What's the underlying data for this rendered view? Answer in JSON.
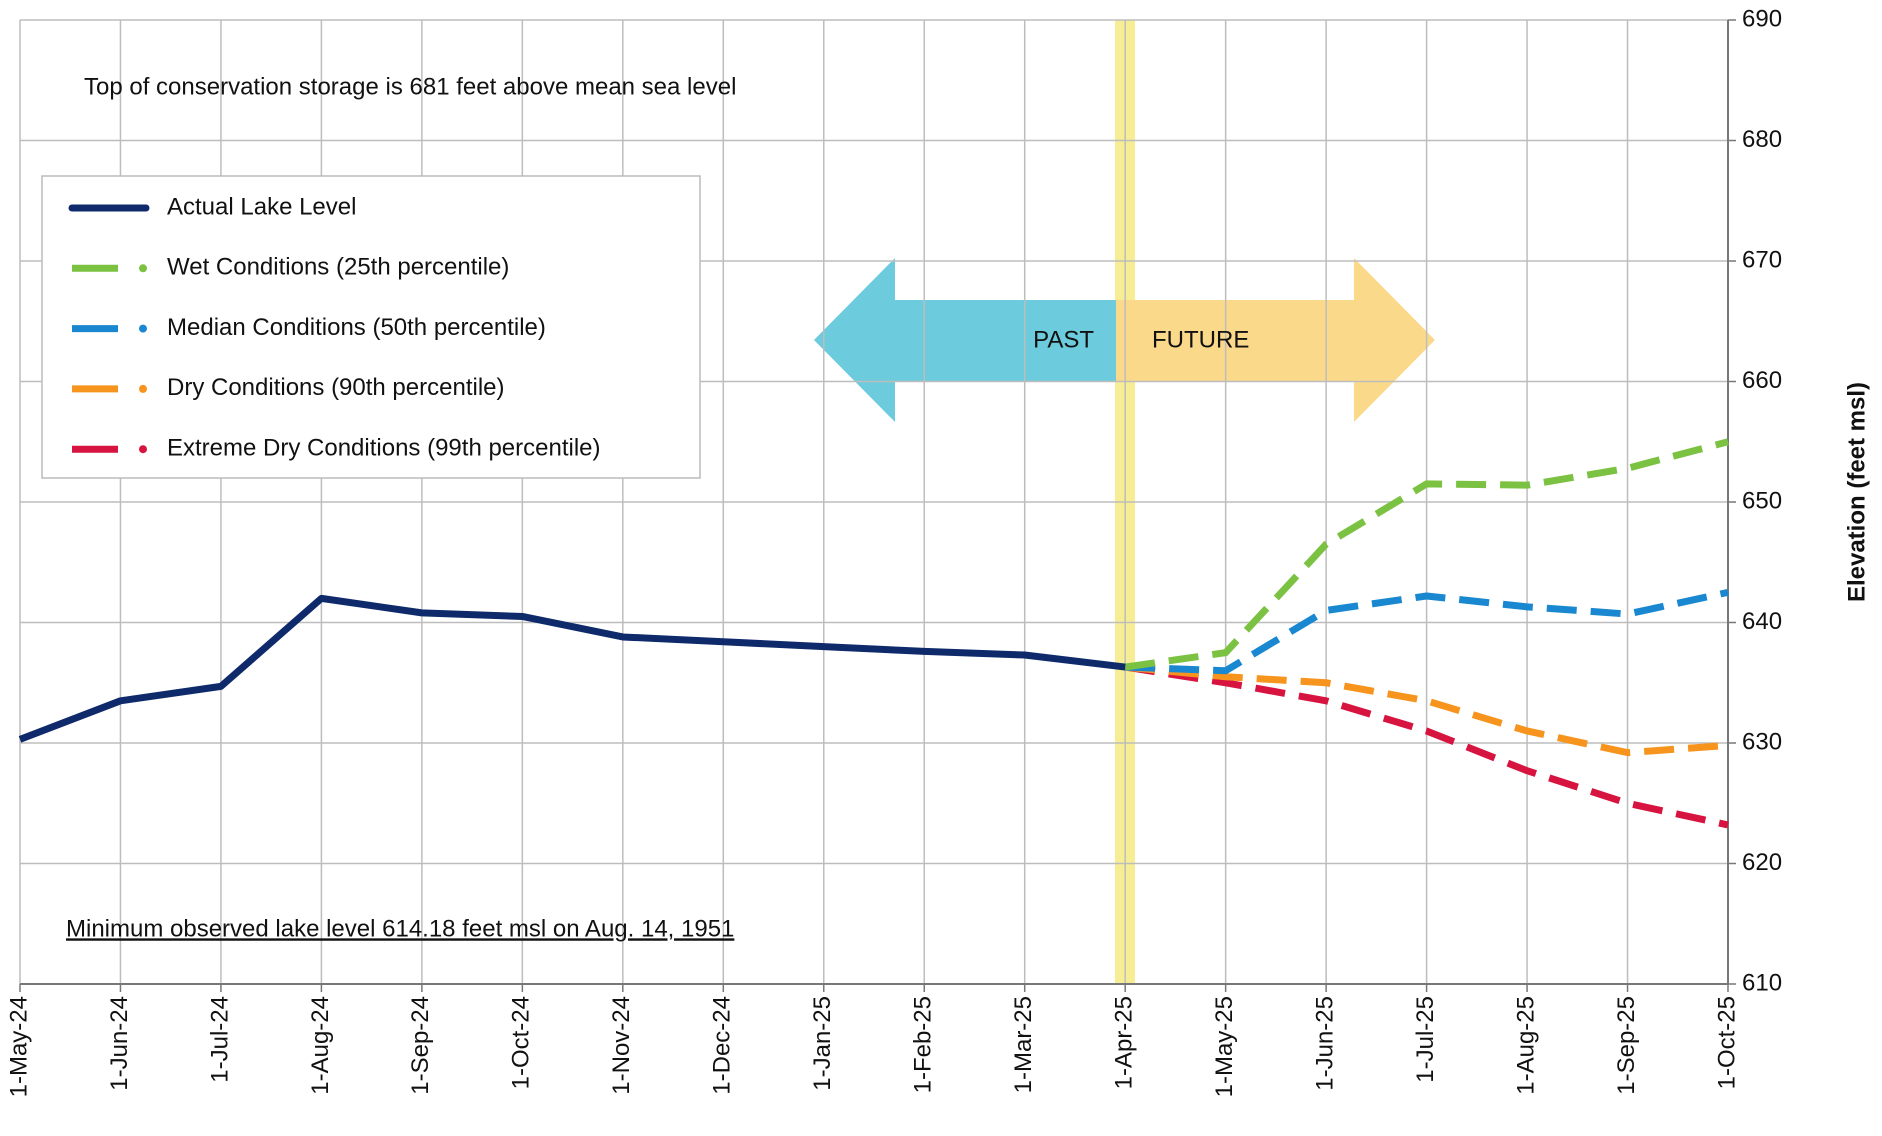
{
  "chart_data": {
    "type": "line",
    "annotations": [
      "Top of conservation storage is 681 feet above mean sea level",
      "Minimum observed lake level 614.18 feet msl on Aug. 14, 1951",
      "PAST",
      "FUTURE"
    ],
    "y_label": "Elevation (feet msl)",
    "categories": [
      "1-May-24",
      "1-Jun-24",
      "1-Jul-24",
      "1-Aug-24",
      "1-Sep-24",
      "1-Oct-24",
      "1-Nov-24",
      "1-Dec-24",
      "1-Jan-25",
      "1-Feb-25",
      "1-Mar-25",
      "1-Apr-25",
      "1-May-25",
      "1-Jun-25",
      "1-Jul-25",
      "1-Aug-25",
      "1-Sep-25",
      "1-Oct-25"
    ],
    "series": [
      {
        "name": "Actual Lake Level",
        "color": "#0e2a6b",
        "style": "solid",
        "values": [
          630.3,
          633.5,
          634.7,
          642,
          640.8,
          640.5,
          638.8,
          638.4,
          638,
          637.6,
          637.3,
          636.3,
          null,
          null,
          null,
          null,
          null,
          null
        ]
      },
      {
        "name": "Wet Conditions (25th percentile)",
        "color": "#7cc242",
        "style": "dashed",
        "values": [
          null,
          null,
          null,
          null,
          null,
          null,
          null,
          null,
          null,
          null,
          null,
          636.3,
          637.5,
          646.5,
          651.5,
          651.4,
          652.8,
          655
        ]
      },
      {
        "name": "Median Conditions (50th percentile)",
        "color": "#1a88d0",
        "style": "dashed",
        "values": [
          null,
          null,
          null,
          null,
          null,
          null,
          null,
          null,
          null,
          null,
          null,
          636.3,
          636,
          641,
          642.2,
          641.3,
          640.7,
          642.5
        ]
      },
      {
        "name": "Dry Conditions (90th percentile)",
        "color": "#f7941d",
        "style": "dashed",
        "values": [
          null,
          null,
          null,
          null,
          null,
          null,
          null,
          null,
          null,
          null,
          null,
          636.3,
          635.5,
          635,
          633.5,
          631,
          629.2,
          629.8
        ]
      },
      {
        "name": "Extreme Dry Conditions (99th percentile)",
        "color": "#d6143f",
        "style": "dashed",
        "values": [
          null,
          null,
          null,
          null,
          null,
          null,
          null,
          null,
          null,
          null,
          null,
          636.3,
          635,
          633.5,
          631,
          627.7,
          625,
          623.2
        ]
      }
    ],
    "ylim": [
      610,
      690
    ],
    "yticks": [
      610,
      620,
      630,
      640,
      650,
      660,
      670,
      680,
      690
    ],
    "grid": true
  }
}
